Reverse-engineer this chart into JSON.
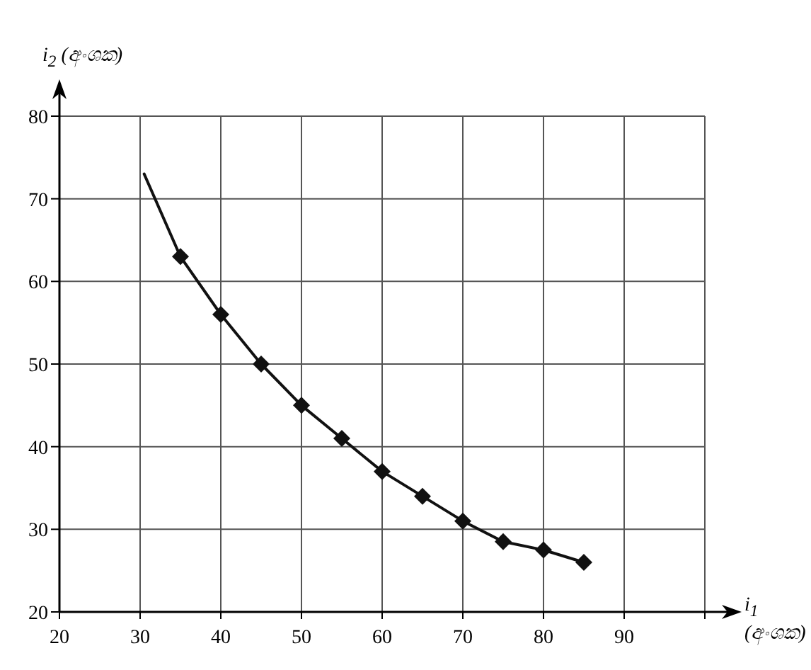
{
  "chart_data": {
    "type": "scatter",
    "xlabel": "i$_{1}$ (අංශක)",
    "ylabel": "i$_{2}$ (අංශක)",
    "xlim": [
      20,
      100
    ],
    "ylim": [
      20,
      80
    ],
    "xticks": [
      20,
      30,
      40,
      50,
      60,
      70,
      80,
      90,
      {
        "value": 100,
        "label": null
      }
    ],
    "yticks": [
      20,
      30,
      40,
      50,
      60,
      70,
      80
    ],
    "grid": true,
    "series": [
      {
        "type": "line",
        "color": "#111111",
        "marker": "none",
        "x": [
          30.5,
          35,
          40,
          45,
          50,
          55,
          60,
          65,
          70,
          75,
          80,
          85
        ],
        "values": [
          73,
          63,
          56,
          50,
          45,
          41,
          37,
          34,
          31,
          28.5,
          27.5,
          26
        ]
      },
      {
        "type": "scatter",
        "color": "#111111",
        "marker": "diamond",
        "x": [
          35,
          40,
          45,
          50,
          55,
          60,
          65,
          70,
          75,
          80,
          85
        ],
        "values": [
          63,
          56,
          50,
          45,
          41,
          37,
          34,
          31,
          28.5,
          27.5,
          26
        ]
      }
    ]
  }
}
